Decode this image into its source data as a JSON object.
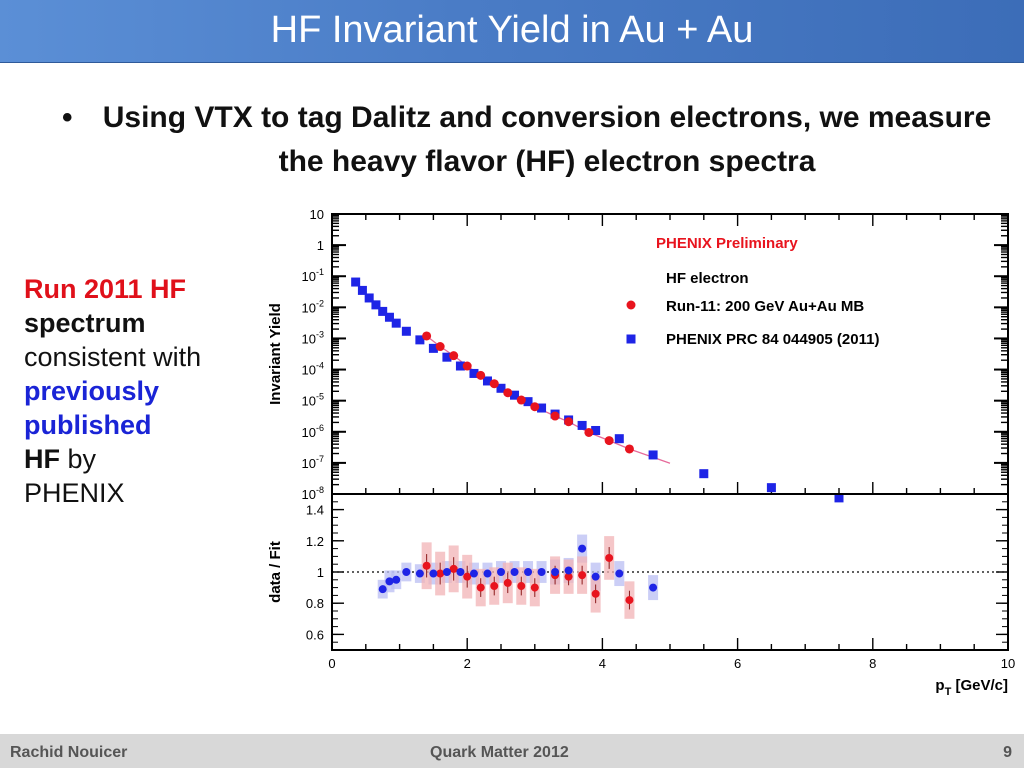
{
  "slide": {
    "title": "HF Invariant Yield in Au + Au",
    "bullet_symbol": "•",
    "bullet_text": "Using VTX to tag Dalitz and conversion electrons, we measure the heavy flavor (HF) electron spectra",
    "side_note": {
      "run": "Run 2011 HF",
      "spectrum": "spectrum",
      "consistent": "consistent with",
      "previously": "previously",
      "published": "published",
      "hf": "HF",
      "by": "by",
      "phenix": "PHENIX"
    },
    "footer": {
      "author": "Rachid Nouicer",
      "conference": "Quark Matter 2012",
      "page": "9"
    }
  },
  "colors": {
    "run11": "#e8141e",
    "prc": "#1e24e6",
    "run11_band": "#f2b3b6",
    "prc_band": "#b9bdf3",
    "fit": "#e66a9a"
  },
  "chart_data": [
    {
      "type": "scatter",
      "panel": "top",
      "ylabel": "Invariant Yield",
      "log_y": true,
      "ylim": [
        1e-08,
        10
      ],
      "xlim": [
        0,
        10
      ],
      "y_tick_labels": [
        "10",
        "1",
        "10-1",
        "10-2",
        "10-3",
        "10-4",
        "10-5",
        "10-6",
        "10-7",
        "10-8"
      ],
      "legend": {
        "header": "PHENIX Preliminary",
        "sub": "HF electron",
        "entries": [
          "Run-11: 200 GeV Au+Au MB",
          "PHENIX PRC 84 044905 (2011)"
        ]
      },
      "series": [
        {
          "name": "Run-11: 200 GeV Au+Au MB",
          "marker": "circle",
          "x": [
            1.4,
            1.6,
            1.8,
            2.0,
            2.2,
            2.4,
            2.6,
            2.8,
            3.0,
            3.3,
            3.5,
            3.8,
            4.1,
            4.4
          ],
          "y": [
            0.0012,
            0.00055,
            0.00028,
            0.00013,
            6.5e-05,
            3.5e-05,
            1.8e-05,
            1.05e-05,
            6.4e-06,
            3.2e-06,
            2.1e-06,
            9.5e-07,
            5.2e-07,
            2.8e-07
          ]
        },
        {
          "name": "PHENIX PRC 84 044905 (2011)",
          "marker": "square",
          "x": [
            0.35,
            0.45,
            0.55,
            0.65,
            0.75,
            0.85,
            0.95,
            1.1,
            1.3,
            1.5,
            1.7,
            1.9,
            2.1,
            2.3,
            2.5,
            2.7,
            2.9,
            3.1,
            3.3,
            3.5,
            3.7,
            3.9,
            4.25,
            4.75,
            5.5,
            6.5,
            7.5
          ],
          "y": [
            0.065,
            0.035,
            0.02,
            0.012,
            0.0074,
            0.0048,
            0.0031,
            0.0017,
            0.0009,
            0.00048,
            0.00025,
            0.00013,
            7.5e-05,
            4.3e-05,
            2.5e-05,
            1.5e-05,
            9.3e-06,
            5.8e-06,
            3.7e-06,
            2.4e-06,
            1.6e-06,
            1.1e-06,
            6e-07,
            1.8e-07,
            4.5e-08,
            1.6e-08,
            7.5e-09
          ]
        }
      ]
    },
    {
      "type": "scatter",
      "panel": "bottom",
      "ylabel": "data / Fit",
      "xlabel": "pT [GeV/c]",
      "ylim": [
        0.5,
        1.5
      ],
      "xlim": [
        0,
        10
      ],
      "y_ticks": [
        0.6,
        0.8,
        1,
        1.2,
        1.4
      ],
      "x_ticks": [
        0,
        2,
        4,
        6,
        8,
        10
      ],
      "reference_line": 1,
      "series": [
        {
          "name": "Run-11: 200 GeV Au+Au MB",
          "x": [
            1.4,
            1.6,
            1.8,
            2.0,
            2.2,
            2.4,
            2.6,
            2.8,
            3.0,
            3.3,
            3.5,
            3.7,
            3.9,
            4.1,
            4.4
          ],
          "y": [
            1.04,
            0.99,
            1.02,
            0.97,
            0.9,
            0.91,
            0.93,
            0.91,
            0.9,
            0.98,
            0.97,
            0.98,
            0.86,
            1.09,
            0.82
          ],
          "err": [
            0.15,
            0.14,
            0.15,
            0.14,
            0.12,
            0.12,
            0.13,
            0.12,
            0.12,
            0.12,
            0.11,
            0.12,
            0.12,
            0.14,
            0.12
          ]
        },
        {
          "name": "PHENIX PRC 84 044905 (2011)",
          "x": [
            0.75,
            0.85,
            0.95,
            1.1,
            1.3,
            1.5,
            1.7,
            1.9,
            2.1,
            2.3,
            2.5,
            2.7,
            2.9,
            3.1,
            3.3,
            3.5,
            3.7,
            3.9,
            4.25,
            4.75
          ],
          "y": [
            0.89,
            0.94,
            0.95,
            1.0,
            0.99,
            0.99,
            1.0,
            1.0,
            0.99,
            0.99,
            1.0,
            1.0,
            1.0,
            1.0,
            1.0,
            1.01,
            1.15,
            0.97,
            0.99,
            0.9
          ],
          "err": [
            0.06,
            0.07,
            0.06,
            0.06,
            0.06,
            0.07,
            0.07,
            0.07,
            0.07,
            0.07,
            0.07,
            0.07,
            0.07,
            0.07,
            0.08,
            0.08,
            0.09,
            0.09,
            0.08,
            0.08
          ]
        }
      ]
    }
  ]
}
